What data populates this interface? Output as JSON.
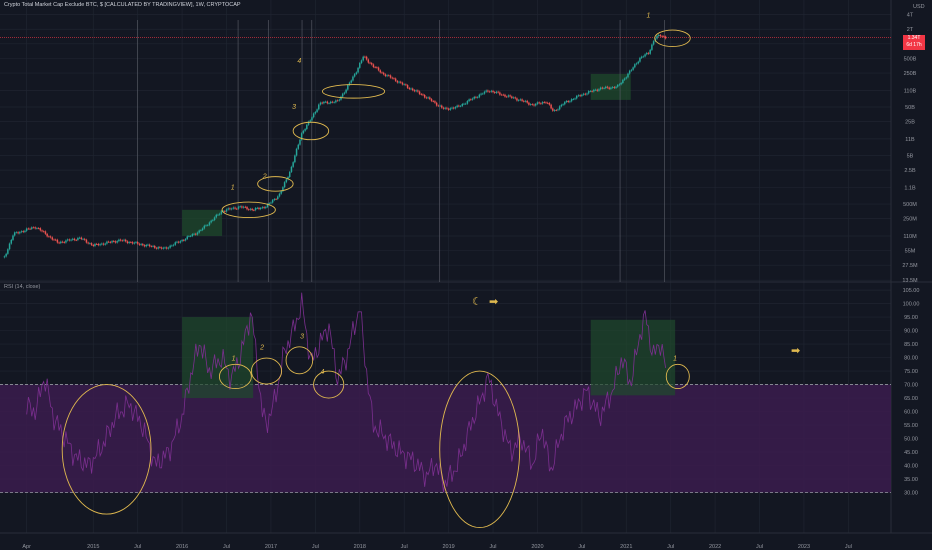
{
  "header": {
    "title": "Crypto Total Market Cap Exclude BTC, $ [CALCULATED BY TRADINGVIEW], 1W, CRYPTOCAP",
    "usd_label": "USD"
  },
  "rsi_panel": {
    "title": "RSI (14, close)"
  },
  "colors": {
    "background": "#131722",
    "grid": "#1f2430",
    "candle_up": "#26a69a",
    "candle_down": "#ef5350",
    "annotation": "#e0b94f",
    "rsi_line": "#7b2f8f",
    "rsi_band": "#3b1c4d",
    "highlight_box": "#1f4a2c",
    "price_label": "#f23645"
  },
  "icons": {
    "moon": "moon-icon",
    "arrow_top": "right-arrow-icon",
    "arrow_right": "right-arrow-icon"
  },
  "price_label": {
    "value": "1.34T",
    "countdown": "6d 17h"
  },
  "chart_data": [
    {
      "type": "candlestick",
      "title": "Crypto Total Market Cap Exclude BTC, $ [CALCULATED BY TRADINGVIEW], 1W, CRYPTOCAP",
      "y_scale": "log",
      "y_ticks": [
        "USD",
        "4T",
        "2T",
        "1T",
        "500B",
        "250B",
        "110B",
        "50B",
        "25B",
        "11B",
        "5B",
        "2.5B",
        "1.1B",
        "500M",
        "250M",
        "110M",
        "55M",
        "27.5M",
        "13.5M"
      ],
      "y_tick_values": [
        8000000000000.0,
        4000000000000.0,
        2000000000000.0,
        1000000000000.0,
        500000000000.0,
        250000000000.0,
        110000000000.0,
        50000000000.0,
        25000000000.0,
        11000000000.0,
        5000000000.0,
        2500000000.0,
        1100000000.0,
        500000000.0,
        250000000.0,
        110000000.0,
        55000000.0,
        27500000.0,
        13500000.0
      ],
      "x_ticks": [
        "Apr",
        "2015",
        "Jul",
        "2016",
        "Jul",
        "2017",
        "Jul",
        "2018",
        "Jul",
        "2019",
        "Jul",
        "2020",
        "Jul",
        "2021",
        "Jul",
        "2022",
        "Jul",
        "2023",
        "Jul"
      ],
      "x_tick_values": [
        2014.25,
        2015.0,
        2015.5,
        2016.0,
        2016.5,
        2017.0,
        2017.5,
        2018.0,
        2018.5,
        2019.0,
        2019.5,
        2020.0,
        2020.5,
        2021.0,
        2021.5,
        2022.0,
        2022.5,
        2023.0,
        2023.5
      ],
      "x_range": [
        2013.95,
        2023.98
      ],
      "series": [
        {
          "key_points": [
            [
              2014.0,
              40000000.0
            ],
            [
              2014.1,
              120000000.0
            ],
            [
              2014.35,
              170000000.0
            ],
            [
              2014.6,
              80000000.0
            ],
            [
              2014.85,
              100000000.0
            ],
            [
              2015.0,
              70000000.0
            ],
            [
              2015.3,
              90000000.0
            ],
            [
              2015.6,
              70000000.0
            ],
            [
              2015.8,
              60000000.0
            ],
            [
              2016.0,
              90000000.0
            ],
            [
              2016.2,
              140000000.0
            ],
            [
              2016.45,
              360000000.0
            ],
            [
              2016.65,
              440000000.0
            ],
            [
              2016.8,
              380000000.0
            ],
            [
              2016.95,
              450000000.0
            ],
            [
              2017.1,
              800000000.0
            ],
            [
              2017.22,
              2500000000.0
            ],
            [
              2017.35,
              15000000000.0
            ],
            [
              2017.45,
              28000000000.0
            ],
            [
              2017.55,
              60000000000.0
            ],
            [
              2017.75,
              65000000000.0
            ],
            [
              2017.85,
              120000000000.0
            ],
            [
              2017.95,
              250000000000.0
            ],
            [
              2018.04,
              550000000000.0
            ],
            [
              2018.15,
              350000000000.0
            ],
            [
              2018.25,
              250000000000.0
            ],
            [
              2018.4,
              180000000000.0
            ],
            [
              2018.55,
              125000000000.0
            ],
            [
              2018.7,
              90000000000.0
            ],
            [
              2018.85,
              60000000000.0
            ],
            [
              2018.95,
              45000000000.0
            ],
            [
              2019.1,
              50000000000.0
            ],
            [
              2019.3,
              80000000000.0
            ],
            [
              2019.45,
              110000000000.0
            ],
            [
              2019.6,
              90000000000.0
            ],
            [
              2019.8,
              70000000000.0
            ],
            [
              2019.95,
              55000000000.0
            ],
            [
              2020.1,
              65000000000.0
            ],
            [
              2020.18,
              40000000000.0
            ],
            [
              2020.3,
              60000000000.0
            ],
            [
              2020.5,
              90000000000.0
            ],
            [
              2020.7,
              120000000000.0
            ],
            [
              2020.9,
              130000000000.0
            ],
            [
              2021.05,
              280000000000.0
            ],
            [
              2021.15,
              500000000000.0
            ],
            [
              2021.25,
              650000000000.0
            ],
            [
              2021.32,
              1300000000000.0
            ],
            [
              2021.38,
              1500000000000.0
            ],
            [
              2021.45,
              1340000000000.0
            ]
          ],
          "last_value": "1.34T"
        }
      ],
      "vertical_lines_x": [
        2015.5,
        2016.63,
        2016.97,
        2017.35,
        2017.46,
        2018.9,
        2020.93,
        2021.43
      ],
      "highlight_boxes": [
        {
          "x": [
            2016.0,
            2016.45
          ],
          "y": [
            110000000.0,
            380000000.0
          ]
        },
        {
          "x": [
            2020.6,
            2021.05
          ],
          "y": [
            70000000000.0,
            240000000000.0
          ]
        }
      ],
      "annotations": [
        {
          "text": "1",
          "x": 2016.57,
          "y": 1000000000.0
        },
        {
          "text": "2",
          "x": 2016.93,
          "y": 1700000000.0
        },
        {
          "text": "3",
          "x": 2017.26,
          "y": 45000000000.0
        },
        {
          "text": "4",
          "x": 2017.32,
          "y": 400000000000.0
        },
        {
          "text": "1",
          "x": 2021.25,
          "y": 3500000000000.0
        }
      ],
      "ellipses": [
        {
          "center": [
            2016.75,
            380000000.0
          ],
          "rx_years": 0.3,
          "ry_log": 0.16
        },
        {
          "center": [
            2017.05,
            1300000000.0
          ],
          "rx_years": 0.2,
          "ry_log": 0.15
        },
        {
          "center": [
            2017.45,
            16000000000.0
          ],
          "rx_years": 0.2,
          "ry_log": 0.18
        },
        {
          "center": [
            2017.93,
            105000000000.0
          ],
          "rx_years": 0.35,
          "ry_log": 0.14
        },
        {
          "center": [
            2021.52,
            1300000000000.0
          ],
          "rx_years": 0.2,
          "ry_log": 0.17
        }
      ]
    },
    {
      "type": "line",
      "title": "RSI (14, close)",
      "y_range": [
        15,
        108
      ],
      "y_ticks": [
        "105.00",
        "100.00",
        "95.00",
        "90.00",
        "85.00",
        "80.00",
        "75.00",
        "70.00",
        "65.00",
        "60.00",
        "55.00",
        "50.00",
        "45.00",
        "40.00",
        "35.00",
        "30.00"
      ],
      "y_tick_values": [
        105,
        100,
        95,
        90,
        85,
        80,
        75,
        70,
        65,
        60,
        55,
        50,
        45,
        40,
        35,
        30
      ],
      "overbought": 70,
      "oversold": 30,
      "band_range": [
        30,
        70
      ],
      "series": [
        {
          "key_points": [
            [
              2014.25,
              62
            ],
            [
              2014.35,
              60
            ],
            [
              2014.45,
              73
            ],
            [
              2014.55,
              58
            ],
            [
              2014.65,
              52
            ],
            [
              2014.8,
              43
            ],
            [
              2014.95,
              40
            ],
            [
              2015.1,
              47
            ],
            [
              2015.25,
              58
            ],
            [
              2015.4,
              63
            ],
            [
              2015.55,
              55
            ],
            [
              2015.7,
              40
            ],
            [
              2015.85,
              45
            ],
            [
              2016.0,
              58
            ],
            [
              2016.1,
              74
            ],
            [
              2016.2,
              86
            ],
            [
              2016.3,
              75
            ],
            [
              2016.45,
              80
            ],
            [
              2016.55,
              72
            ],
            [
              2016.65,
              80
            ],
            [
              2016.78,
              97
            ],
            [
              2016.9,
              60
            ],
            [
              2016.95,
              55
            ],
            [
              2017.05,
              65
            ],
            [
              2017.15,
              82
            ],
            [
              2017.25,
              90
            ],
            [
              2017.35,
              100
            ],
            [
              2017.45,
              78
            ],
            [
              2017.55,
              85
            ],
            [
              2017.65,
              92
            ],
            [
              2017.75,
              72
            ],
            [
              2017.85,
              80
            ],
            [
              2018.0,
              99
            ],
            [
              2018.05,
              82
            ],
            [
              2018.15,
              55
            ],
            [
              2018.3,
              50
            ],
            [
              2018.45,
              45
            ],
            [
              2018.6,
              42
            ],
            [
              2018.75,
              36
            ],
            [
              2018.85,
              41
            ],
            [
              2018.95,
              33
            ],
            [
              2019.1,
              40
            ],
            [
              2019.25,
              55
            ],
            [
              2019.38,
              66
            ],
            [
              2019.45,
              73
            ],
            [
              2019.55,
              60
            ],
            [
              2019.7,
              45
            ],
            [
              2019.82,
              50
            ],
            [
              2019.95,
              40
            ],
            [
              2020.05,
              54
            ],
            [
              2020.15,
              38
            ],
            [
              2020.3,
              55
            ],
            [
              2020.45,
              62
            ],
            [
              2020.55,
              68
            ],
            [
              2020.7,
              58
            ],
            [
              2020.85,
              68
            ],
            [
              2020.95,
              80
            ],
            [
              2021.05,
              70
            ],
            [
              2021.15,
              88
            ],
            [
              2021.22,
              96
            ],
            [
              2021.3,
              80
            ],
            [
              2021.38,
              86
            ],
            [
              2021.45,
              75
            ]
          ]
        }
      ],
      "highlight_boxes": [
        {
          "x": [
            2016.0,
            2016.8
          ],
          "y": [
            65,
            95
          ]
        },
        {
          "x": [
            2020.6,
            2021.55
          ],
          "y": [
            66,
            94
          ]
        }
      ],
      "annotations": [
        {
          "text": "1",
          "x": 2016.58,
          "y": 79
        },
        {
          "text": "2",
          "x": 2016.9,
          "y": 83
        },
        {
          "text": "3",
          "x": 2017.35,
          "y": 87
        },
        {
          "text": "4",
          "x": 2017.58,
          "y": 74
        },
        {
          "text": "1",
          "x": 2021.55,
          "y": 79
        }
      ],
      "ellipses": [
        {
          "center": [
            2015.15,
            46
          ],
          "rx_years": 0.5,
          "ry_units": 24
        },
        {
          "center": [
            2016.6,
            73
          ],
          "rx_years": 0.18,
          "ry_units": 4.5
        },
        {
          "center": [
            2016.95,
            75
          ],
          "rx_years": 0.17,
          "ry_units": 4.8
        },
        {
          "center": [
            2017.32,
            79
          ],
          "rx_years": 0.15,
          "ry_units": 5
        },
        {
          "center": [
            2017.65,
            70
          ],
          "rx_years": 0.17,
          "ry_units": 5
        },
        {
          "center": [
            2019.35,
            46
          ],
          "rx_years": 0.45,
          "ry_units": 29
        },
        {
          "center": [
            2021.58,
            73
          ],
          "rx_years": 0.13,
          "ry_units": 4.5
        }
      ]
    }
  ]
}
